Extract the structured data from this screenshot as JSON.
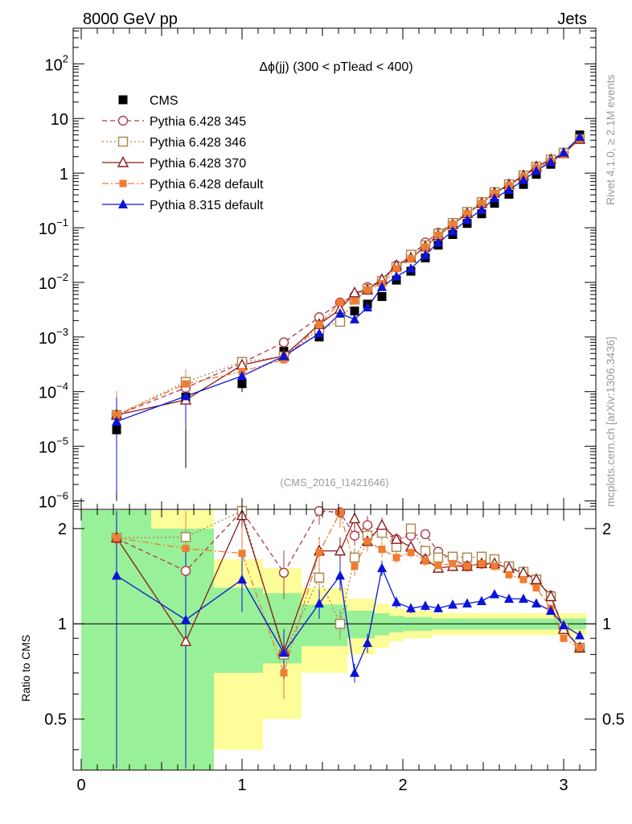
{
  "header": {
    "left": "8000 GeV pp",
    "right": "Jets"
  },
  "side": {
    "rivet": "Rivet 4.1.0, ≥ 2.1M events",
    "mcplots": "mcplots.cern.ch [arXiv:1306.3436]"
  },
  "chart_data": {
    "type": "scatter",
    "title": "Δϕ(jj) (300 < pTlead <  400)",
    "analysis_id": "(CMS_2016_I1421646)",
    "xlabel": "",
    "ylabel": "",
    "ratio_ylabel": "Ratio to CMS",
    "xlim": [
      -0.05,
      3.2
    ],
    "ylim_log": [
      7e-07,
      450
    ],
    "ratio_ylim": [
      0.345,
      2.3
    ],
    "x_tick_labels": [
      "0",
      "1",
      "2",
      "3"
    ],
    "y_tick_labels": [
      "10^-6",
      "10^-5",
      "10^-4",
      "10^-3",
      "10^-2",
      "10^-1",
      "1",
      "10",
      "10^2"
    ],
    "ratio_tick_labels": [
      "0.5",
      "1",
      "2"
    ],
    "x": [
      0.22,
      0.65,
      1.0,
      1.26,
      1.48,
      1.61,
      1.7,
      1.78,
      1.87,
      1.96,
      2.05,
      2.14,
      2.22,
      2.31,
      2.4,
      2.49,
      2.57,
      2.66,
      2.75,
      2.83,
      2.92,
      3.0,
      3.1
    ],
    "data": {
      "name": "CMS",
      "values": [
        2e-05,
        8e-05,
        0.00014,
        0.00055,
        0.001,
        0.0019,
        0.003,
        0.004,
        0.0055,
        0.011,
        0.016,
        0.028,
        0.048,
        0.075,
        0.12,
        0.18,
        0.28,
        0.41,
        0.62,
        0.95,
        1.45,
        2.4,
        5.0
      ],
      "errors_rel": [
        2.5,
        1.0,
        0.3,
        0.25,
        0.15,
        0.15,
        0.1,
        0.1,
        0.08,
        0.06,
        0.05,
        0.05,
        0.04,
        0.04,
        0.04,
        0.04,
        0.04,
        0.04,
        0.04,
        0.04,
        0.04,
        0.04,
        0.04
      ]
    },
    "series": [
      {
        "name": "Pythia 6.428 345",
        "color": "#b03a48",
        "marker": "open-circle",
        "ratio": [
          1.86,
          1.47,
          2.4,
          1.45,
          2.3,
          2.25,
          1.9,
          2.05,
          1.96,
          1.85,
          1.9,
          1.92,
          1.69,
          1.6,
          1.52,
          1.55,
          1.55,
          1.5,
          1.46,
          1.38,
          1.23,
          0.97,
          0.84
        ]
      },
      {
        "name": "Pythia 6.428 346",
        "color": "#a8844a",
        "marker": "open-square",
        "ratio": [
          1.87,
          1.88,
          2.5,
          0.8,
          1.4,
          1.0,
          1.62,
          1.9,
          1.94,
          1.75,
          2.0,
          1.7,
          1.62,
          1.63,
          1.62,
          1.63,
          1.6,
          1.52,
          1.46,
          1.38,
          1.22,
          0.97,
          0.84
        ]
      },
      {
        "name": "Pythia 6.428 370",
        "color": "#8b1a1a",
        "marker": "open-triangle",
        "ratio": [
          1.87,
          0.88,
          2.2,
          0.82,
          1.7,
          1.7,
          2.15,
          1.82,
          2.05,
          1.85,
          1.75,
          1.6,
          1.5,
          1.52,
          1.52,
          1.55,
          1.55,
          1.5,
          1.45,
          1.38,
          1.22,
          0.96,
          0.84
        ]
      },
      {
        "name": "Pythia 6.428 default",
        "color": "#f07c30",
        "marker": "filled-square",
        "ratio": [
          1.87,
          1.73,
          1.67,
          0.7,
          1.68,
          2.25,
          1.52,
          1.82,
          1.72,
          1.62,
          1.68,
          1.58,
          1.53,
          1.55,
          1.52,
          1.55,
          1.52,
          1.43,
          1.38,
          1.3,
          1.12,
          0.9,
          0.84
        ]
      },
      {
        "name": "Pythia 8.315 default",
        "color": "#0a14d8",
        "marker": "filled-triangle",
        "ratio": [
          1.42,
          1.03,
          1.38,
          0.81,
          1.16,
          1.42,
          0.7,
          0.87,
          1.5,
          1.17,
          1.12,
          1.14,
          1.12,
          1.15,
          1.16,
          1.18,
          1.24,
          1.2,
          1.2,
          1.16,
          1.1,
          0.99,
          0.92
        ]
      }
    ],
    "legend_position": "top-left",
    "grid": false
  }
}
